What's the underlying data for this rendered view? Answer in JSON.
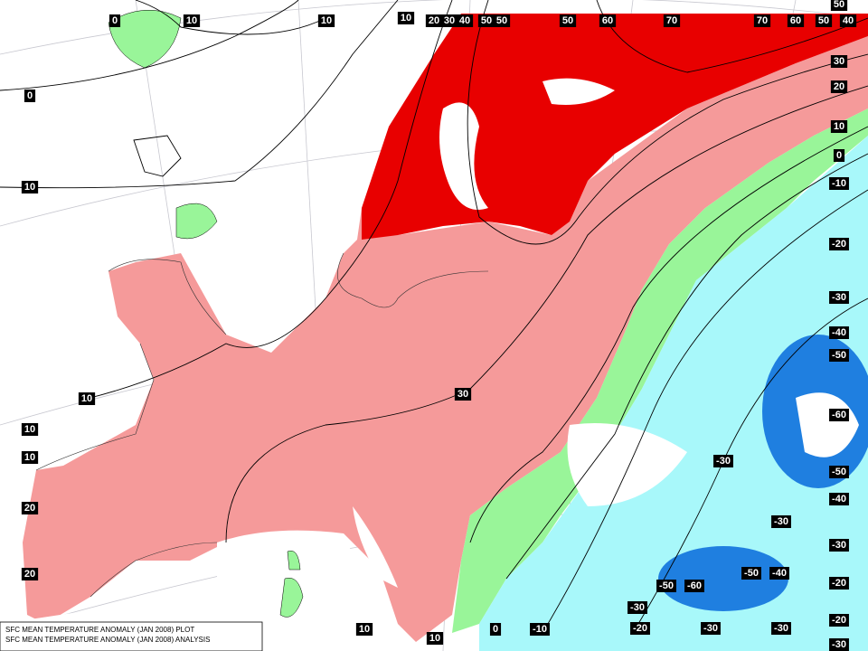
{
  "caption": [
    "SFC MEAN TEMPERATURE ANOMALY (JAN 2008) PLOT",
    "SFC MEAN TEMPERATURE ANOMALY (JAN 2008) ANALYSIS"
  ],
  "contour_labels": [
    "0",
    "10",
    "10",
    "10",
    "20",
    "30",
    "40",
    "50",
    "50",
    "50",
    "60",
    "70",
    "70",
    "60",
    "50",
    "40",
    "50",
    "30",
    "20",
    "10",
    "0",
    "-10",
    "-20",
    "-30",
    "-40",
    "-50",
    "-60",
    "-50",
    "-40",
    "-30",
    "-20",
    "-20",
    "-30",
    "0",
    "10",
    "10",
    "10",
    "10",
    "20",
    "20",
    "30",
    "-30",
    "-30",
    "-50",
    "-60",
    "-50",
    "-40",
    "-30",
    "-20",
    "-30",
    "-30",
    "10",
    "10",
    "0",
    "-10"
  ]
}
